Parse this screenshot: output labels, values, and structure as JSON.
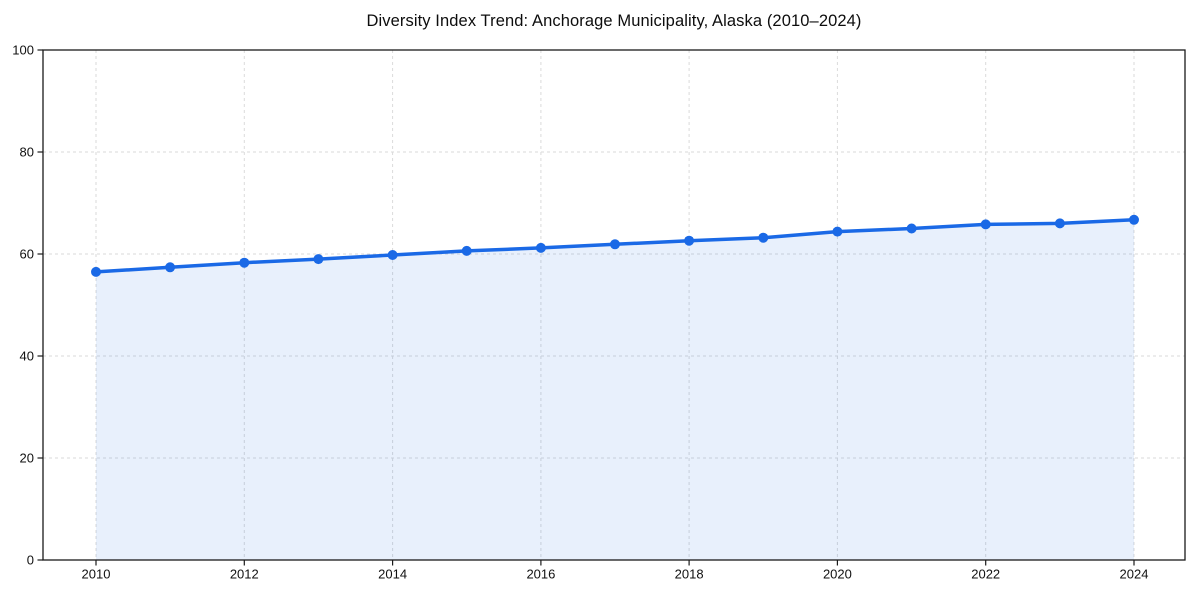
{
  "figure": {
    "background": "#ffffff"
  },
  "chart_data": {
    "type": "area",
    "title": "Diversity Index Trend: Anchorage Municipality, Alaska (2010–2024)",
    "x": [
      2010,
      2011,
      2012,
      2013,
      2014,
      2015,
      2016,
      2017,
      2018,
      2019,
      2020,
      2021,
      2022,
      2023,
      2024
    ],
    "series": [
      {
        "name": "Diversity Index",
        "values": [
          56.5,
          57.4,
          58.3,
          59.0,
          59.8,
          60.6,
          61.2,
          61.9,
          62.6,
          63.2,
          64.4,
          65.0,
          65.8,
          66.0,
          66.7
        ]
      }
    ],
    "xlabel": "",
    "ylabel": "",
    "xlim": [
      2010,
      2024
    ],
    "ylim": [
      0,
      100
    ],
    "xticks": [
      2010,
      2012,
      2014,
      2016,
      2018,
      2020,
      2022,
      2024
    ],
    "yticks": [
      0,
      20,
      40,
      60,
      80,
      100
    ],
    "grid": "dashed, both axes at ticks",
    "legend_position": "none",
    "line_color": "#1a69e6",
    "marker_color": "#1a69e6",
    "fill_color": "rgba(26,105,230,0.10)",
    "grid_color": "#dadada",
    "axis_color": "#1a1a1a",
    "text_color": "#111111"
  }
}
